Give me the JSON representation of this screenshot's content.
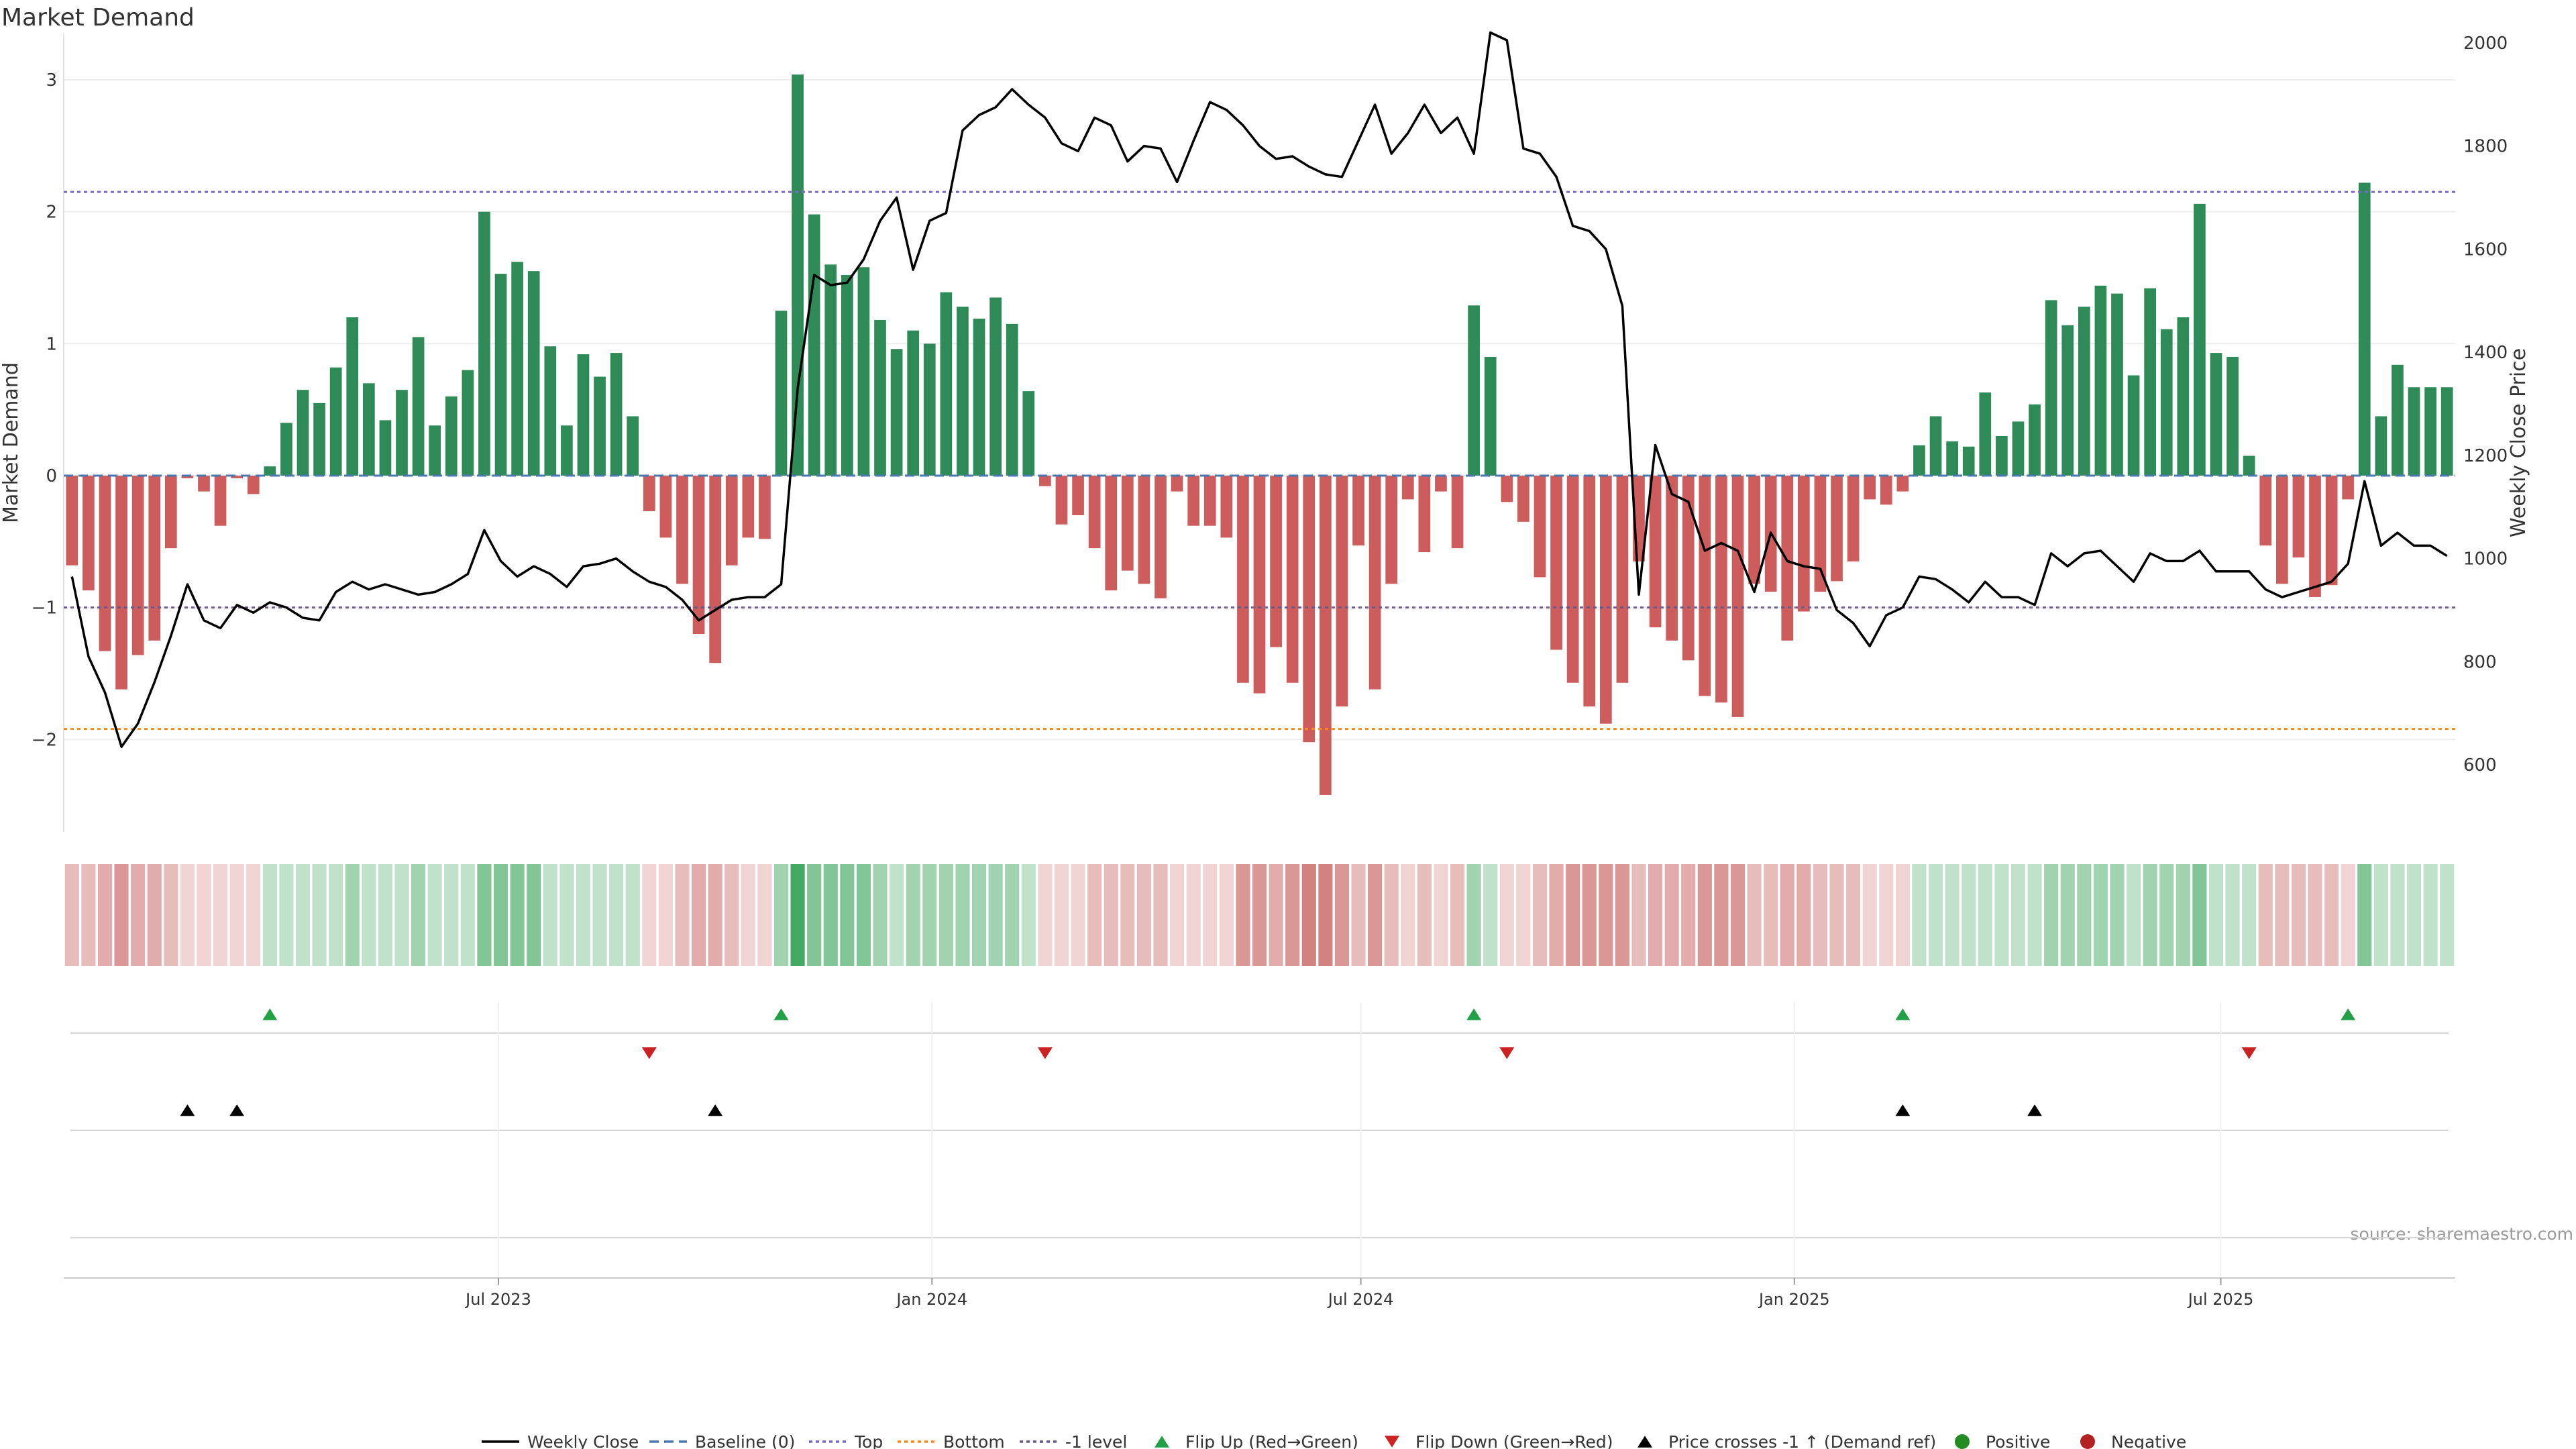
{
  "chart_data": {
    "type": "bar",
    "title": "Market Demand",
    "ylabel_left": "Market Demand",
    "ylabel_right": "Weekly Close Price",
    "source": "source: sharemaestro.com",
    "x_start": "2023-01-01",
    "week_days": 7,
    "ylim_left": [
      -2.7,
      3.3
    ],
    "ylim_right": [
      470,
      2005
    ],
    "yticks_left": [
      3,
      2,
      1,
      0,
      -1,
      -2
    ],
    "ytick_labels_left": [
      "3",
      "2",
      "1",
      "0",
      "−1",
      "−2"
    ],
    "yticks_right": [
      2000,
      1800,
      1600,
      1400,
      1200,
      1000,
      800,
      600
    ],
    "ytick_labels_right": [
      "2000",
      "1800",
      "1600",
      "1400",
      "1200",
      "1000",
      "800",
      "600"
    ],
    "x_ticks": [
      {
        "label": "Jul 2023",
        "date": "2023-07-01"
      },
      {
        "label": "Jan 2024",
        "date": "2024-01-01"
      },
      {
        "label": "Jul 2024",
        "date": "2024-07-01"
      },
      {
        "label": "Jan 2025",
        "date": "2025-01-01"
      },
      {
        "label": "Jul 2025",
        "date": "2025-07-01"
      }
    ],
    "reference_lines": {
      "baseline": 0,
      "top": 2.15,
      "bottom": -1.92,
      "minus_one": -1
    },
    "colors": {
      "positive": "#2e8b57",
      "negative": "#cd5c5c",
      "price": "#000000",
      "baseline": "#4a78b0",
      "top": "#7b68c8",
      "bottom": "#ff8c1a",
      "minus_one": "#6a5a8a",
      "flip_up": "#22a045",
      "flip_down": "#cc2222",
      "cross": "#000000",
      "positive_dot": "#228b22",
      "negative_dot": "#b22222"
    },
    "series": [
      {
        "name": "Market Demand",
        "values": [
          -0.68,
          -0.87,
          -1.33,
          -1.62,
          -1.36,
          -1.25,
          -0.55,
          -0.02,
          -0.12,
          -0.38,
          -0.02,
          -0.14,
          0.07,
          0.4,
          0.65,
          0.55,
          0.82,
          1.2,
          0.7,
          0.42,
          0.65,
          1.05,
          0.38,
          0.6,
          0.8,
          2.0,
          1.53,
          1.62,
          1.55,
          0.98,
          0.38,
          0.92,
          0.75,
          0.93,
          0.45,
          -0.27,
          -0.47,
          -0.82,
          -1.2,
          -1.42,
          -0.68,
          -0.47,
          -0.48,
          1.25,
          3.04,
          1.98,
          1.6,
          1.52,
          1.58,
          1.18,
          0.96,
          1.1,
          1.0,
          1.39,
          1.28,
          1.19,
          1.35,
          1.15,
          0.64,
          -0.08,
          -0.37,
          -0.3,
          -0.55,
          -0.87,
          -0.72,
          -0.82,
          -0.93,
          -0.12,
          -0.38,
          -0.38,
          -0.47,
          -1.57,
          -1.65,
          -1.3,
          -1.57,
          -2.02,
          -2.42,
          -1.75,
          -0.53,
          -1.62,
          -0.82,
          -0.18,
          -0.58,
          -0.12,
          -0.55,
          1.29,
          0.9,
          -0.2,
          -0.35,
          -0.77,
          -1.32,
          -1.57,
          -1.75,
          -1.88,
          -1.57,
          -0.65,
          -1.15,
          -1.25,
          -1.4,
          -1.67,
          -1.72,
          -1.83,
          -0.82,
          -0.88,
          -1.25,
          -1.03,
          -0.88,
          -0.8,
          -0.65,
          -0.18,
          -0.22,
          -0.12,
          0.23,
          0.45,
          0.26,
          0.22,
          0.63,
          0.3,
          0.41,
          0.54,
          1.33,
          1.14,
          1.28,
          1.44,
          1.38,
          0.76,
          1.42,
          1.11,
          1.2,
          2.06,
          0.93,
          0.9,
          0.15,
          -0.53,
          -0.82,
          -0.62,
          -0.92,
          -0.83,
          -0.18,
          2.22,
          0.45,
          0.84,
          0.67,
          0.67,
          0.67
        ]
      },
      {
        "name": "Weekly Close",
        "values": [
          965,
          810,
          740,
          635,
          680,
          760,
          850,
          950,
          880,
          865,
          910,
          895,
          915,
          905,
          885,
          880,
          935,
          955,
          940,
          950,
          940,
          930,
          935,
          950,
          970,
          1055,
          995,
          965,
          985,
          970,
          945,
          985,
          990,
          1000,
          975,
          955,
          945,
          920,
          880,
          900,
          920,
          925,
          925,
          950,
          1330,
          1550,
          1530,
          1535,
          1580,
          1655,
          1700,
          1560,
          1655,
          1670,
          1830,
          1860,
          1875,
          1910,
          1880,
          1855,
          1805,
          1790,
          1855,
          1840,
          1770,
          1800,
          1795,
          1730,
          1810,
          1885,
          1870,
          1840,
          1800,
          1775,
          1780,
          1760,
          1745,
          1740,
          1810,
          1880,
          1785,
          1825,
          1880,
          1825,
          1855,
          1785,
          2020,
          2005,
          1795,
          1785,
          1740,
          1645,
          1635,
          1600,
          1490,
          930,
          1220,
          1125,
          1110,
          1015,
          1030,
          1015,
          935,
          1050,
          995,
          985,
          980,
          900,
          875,
          830,
          890,
          905,
          965,
          960,
          940,
          915,
          955,
          925,
          925,
          910,
          1010,
          985,
          1010,
          1015,
          985,
          955,
          1010,
          995,
          995,
          1015,
          975,
          975,
          975,
          940,
          925,
          935,
          945,
          955,
          990,
          1150,
          1025,
          1050,
          1025,
          1025,
          1005
        ]
      }
    ],
    "flip_up": [
      12,
      43,
      85,
      111,
      138
    ],
    "flip_down": [
      35,
      59,
      87,
      132
    ],
    "price_cross_up": [
      7,
      10,
      39,
      111,
      119
    ],
    "legend": {
      "weekly_close": "Weekly Close",
      "baseline": "Baseline (0)",
      "top": "Top",
      "bottom": "Bottom",
      "minus_one": "-1 level",
      "flip_up": "Flip Up (Red→Green)",
      "flip_down": "Flip Down (Green→Red)",
      "cross": "Price crosses -1 ↑ (Demand ref)",
      "positive": "Positive",
      "negative": "Negative"
    }
  }
}
